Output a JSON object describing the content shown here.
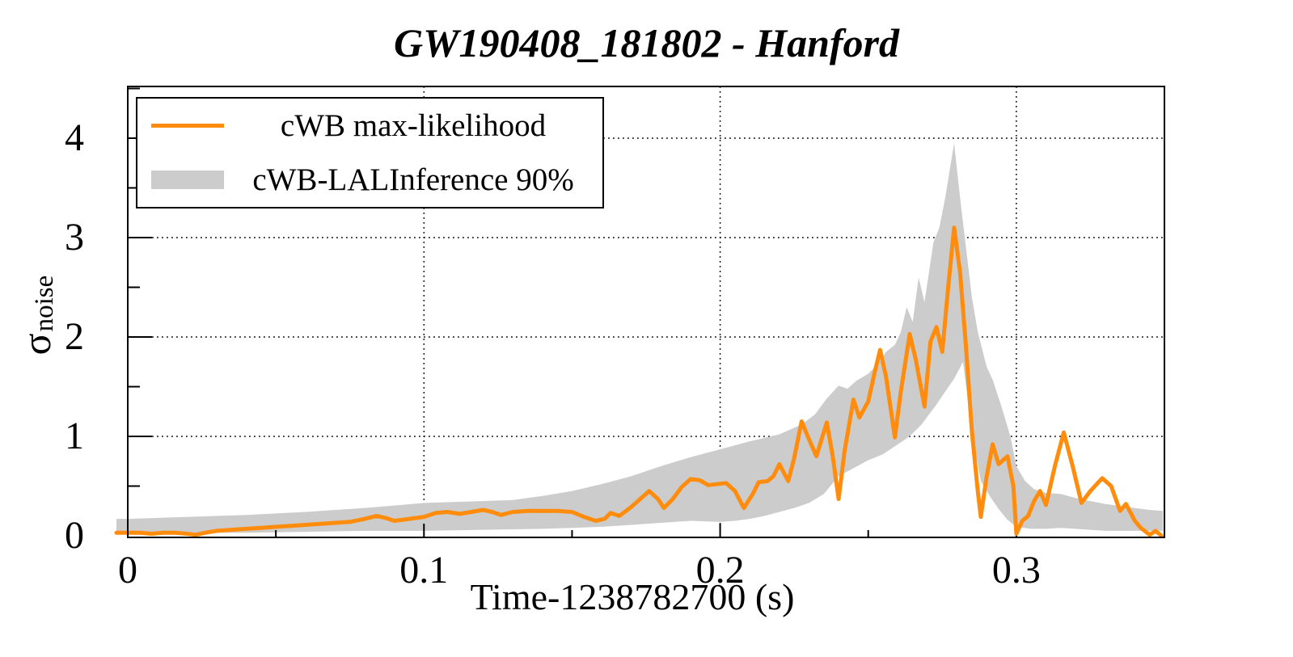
{
  "title": "GW190408_181802 - Hanford",
  "x_axis": {
    "label": "Time-1238782700 (s)",
    "tick_labels": [
      "0",
      "0.1",
      "0.2",
      "0.3"
    ],
    "tick_values": [
      0,
      0.1,
      0.2,
      0.3
    ],
    "minor_step": 0.05,
    "range": [
      0,
      0.35
    ]
  },
  "y_axis": {
    "label_base": "σ",
    "label_sub": "noise",
    "tick_labels": [
      "0",
      "1",
      "2",
      "3",
      "4"
    ],
    "tick_values": [
      0,
      1,
      2,
      3,
      4
    ],
    "minor_step": 0.5,
    "range": [
      0,
      4.52
    ]
  },
  "legend": {
    "entries": [
      {
        "label": "cWB max-likelihood",
        "type": "line",
        "color": "#ff8c0d"
      },
      {
        "label": "cWB-LALInference 90%",
        "type": "band",
        "color": "#cccccc"
      }
    ],
    "position": "top-left"
  },
  "colors": {
    "line": "#ff8c0d",
    "band": "#cccccc",
    "frame": "#000000",
    "grid": "#000000",
    "background": "#ffffff"
  },
  "chart_data": {
    "type": "line",
    "title": "GW190408_181802 - Hanford",
    "xlabel": "Time-1238782700 (s)",
    "ylabel": "sigma_noise",
    "xlim": [
      0,
      0.35
    ],
    "ylim": [
      0,
      4.52
    ],
    "grid": true,
    "grid_style": "dotted",
    "x_gridlines": [
      0.1,
      0.2,
      0.3
    ],
    "y_gridlines": [
      1,
      2,
      3,
      4
    ],
    "legend_position": "top-left",
    "series": [
      {
        "name": "cWB max-likelihood",
        "type": "line",
        "color": "#ff8c0d",
        "points": [
          [
            0,
            0.03
          ],
          [
            0.004,
            0.03
          ],
          [
            0.008,
            0.02
          ],
          [
            0.012,
            0.03
          ],
          [
            0.016,
            0.03
          ],
          [
            0.02,
            0.02
          ],
          [
            0.023,
            0.01
          ],
          [
            0.026,
            0.03
          ],
          [
            0.03,
            0.05
          ],
          [
            0.035,
            0.06
          ],
          [
            0.04,
            0.07
          ],
          [
            0.045,
            0.08
          ],
          [
            0.05,
            0.09
          ],
          [
            0.055,
            0.1
          ],
          [
            0.06,
            0.11
          ],
          [
            0.065,
            0.12
          ],
          [
            0.07,
            0.13
          ],
          [
            0.075,
            0.14
          ],
          [
            0.08,
            0.17
          ],
          [
            0.084,
            0.2
          ],
          [
            0.087,
            0.18
          ],
          [
            0.09,
            0.15
          ],
          [
            0.095,
            0.17
          ],
          [
            0.1,
            0.19
          ],
          [
            0.104,
            0.23
          ],
          [
            0.108,
            0.24
          ],
          [
            0.112,
            0.22
          ],
          [
            0.116,
            0.24
          ],
          [
            0.12,
            0.26
          ],
          [
            0.123,
            0.24
          ],
          [
            0.126,
            0.21
          ],
          [
            0.13,
            0.24
          ],
          [
            0.135,
            0.25
          ],
          [
            0.14,
            0.25
          ],
          [
            0.145,
            0.25
          ],
          [
            0.15,
            0.24
          ],
          [
            0.154,
            0.19
          ],
          [
            0.158,
            0.15
          ],
          [
            0.161,
            0.17
          ],
          [
            0.163,
            0.23
          ],
          [
            0.166,
            0.2
          ],
          [
            0.17,
            0.29
          ],
          [
            0.173,
            0.37
          ],
          [
            0.176,
            0.45
          ],
          [
            0.179,
            0.37
          ],
          [
            0.181,
            0.28
          ],
          [
            0.184,
            0.37
          ],
          [
            0.187,
            0.49
          ],
          [
            0.19,
            0.57
          ],
          [
            0.193,
            0.56
          ],
          [
            0.196,
            0.51
          ],
          [
            0.199,
            0.52
          ],
          [
            0.202,
            0.53
          ],
          [
            0.205,
            0.45
          ],
          [
            0.208,
            0.28
          ],
          [
            0.211,
            0.42
          ],
          [
            0.213,
            0.54
          ],
          [
            0.216,
            0.55
          ],
          [
            0.218,
            0.6
          ],
          [
            0.22,
            0.72
          ],
          [
            0.223,
            0.55
          ],
          [
            0.225,
            0.78
          ],
          [
            0.2275,
            1.15
          ],
          [
            0.23,
            0.97
          ],
          [
            0.2325,
            0.8
          ],
          [
            0.236,
            1.14
          ],
          [
            0.238,
            0.8
          ],
          [
            0.24,
            0.37
          ],
          [
            0.242,
            0.85
          ],
          [
            0.245,
            1.37
          ],
          [
            0.247,
            1.19
          ],
          [
            0.25,
            1.35
          ],
          [
            0.252,
            1.62
          ],
          [
            0.254,
            1.87
          ],
          [
            0.256,
            1.6
          ],
          [
            0.259,
            0.99
          ],
          [
            0.261,
            1.45
          ],
          [
            0.264,
            2.03
          ],
          [
            0.266,
            1.78
          ],
          [
            0.269,
            1.3
          ],
          [
            0.271,
            1.95
          ],
          [
            0.273,
            2.1
          ],
          [
            0.275,
            1.85
          ],
          [
            0.277,
            2.5
          ],
          [
            0.279,
            3.1
          ],
          [
            0.281,
            2.65
          ],
          [
            0.283,
            1.9
          ],
          [
            0.285,
            1.05
          ],
          [
            0.287,
            0.45
          ],
          [
            0.288,
            0.19
          ],
          [
            0.29,
            0.6
          ],
          [
            0.292,
            0.92
          ],
          [
            0.294,
            0.72
          ],
          [
            0.297,
            0.8
          ],
          [
            0.299,
            0.5
          ],
          [
            0.3,
            0.02
          ],
          [
            0.302,
            0.15
          ],
          [
            0.304,
            0.2
          ],
          [
            0.306,
            0.35
          ],
          [
            0.308,
            0.45
          ],
          [
            0.31,
            0.31
          ],
          [
            0.313,
            0.7
          ],
          [
            0.316,
            1.04
          ],
          [
            0.319,
            0.7
          ],
          [
            0.322,
            0.33
          ],
          [
            0.325,
            0.45
          ],
          [
            0.329,
            0.58
          ],
          [
            0.332,
            0.5
          ],
          [
            0.335,
            0.25
          ],
          [
            0.337,
            0.32
          ],
          [
            0.34,
            0.15
          ],
          [
            0.342,
            0.08
          ],
          [
            0.345,
            0.01
          ],
          [
            0.347,
            0.05
          ],
          [
            0.349,
            0.0
          ]
        ]
      },
      {
        "name": "cWB-LALInference 90%",
        "type": "band",
        "color": "#cccccc",
        "lower": [
          [
            0,
            0.02
          ],
          [
            0.02,
            0.03
          ],
          [
            0.04,
            0.03
          ],
          [
            0.06,
            0.04
          ],
          [
            0.08,
            0.05
          ],
          [
            0.1,
            0.05
          ],
          [
            0.12,
            0.06
          ],
          [
            0.14,
            0.07
          ],
          [
            0.15,
            0.08
          ],
          [
            0.16,
            0.09
          ],
          [
            0.17,
            0.11
          ],
          [
            0.18,
            0.13
          ],
          [
            0.19,
            0.15
          ],
          [
            0.2,
            0.14
          ],
          [
            0.205,
            0.15
          ],
          [
            0.21,
            0.17
          ],
          [
            0.215,
            0.2
          ],
          [
            0.22,
            0.24
          ],
          [
            0.225,
            0.28
          ],
          [
            0.23,
            0.33
          ],
          [
            0.235,
            0.42
          ],
          [
            0.24,
            0.6
          ],
          [
            0.245,
            0.68
          ],
          [
            0.25,
            0.76
          ],
          [
            0.255,
            0.82
          ],
          [
            0.26,
            0.92
          ],
          [
            0.263,
            0.98
          ],
          [
            0.265,
            1.03
          ],
          [
            0.268,
            1.12
          ],
          [
            0.27,
            1.2
          ],
          [
            0.273,
            1.32
          ],
          [
            0.276,
            1.45
          ],
          [
            0.279,
            1.58
          ],
          [
            0.282,
            1.75
          ],
          [
            0.284,
            1.28
          ],
          [
            0.286,
            0.88
          ],
          [
            0.288,
            0.55
          ],
          [
            0.291,
            0.4
          ],
          [
            0.294,
            0.27
          ],
          [
            0.297,
            0.16
          ],
          [
            0.3,
            0.09
          ],
          [
            0.305,
            0.07
          ],
          [
            0.31,
            0.07
          ],
          [
            0.315,
            0.08
          ],
          [
            0.32,
            0.07
          ],
          [
            0.325,
            0.06
          ],
          [
            0.33,
            0.05
          ],
          [
            0.335,
            0.05
          ],
          [
            0.34,
            0.05
          ],
          [
            0.345,
            0.05
          ],
          [
            0.3495,
            0.05
          ]
        ],
        "upper": [
          [
            0,
            0.17
          ],
          [
            0.02,
            0.19
          ],
          [
            0.04,
            0.21
          ],
          [
            0.06,
            0.24
          ],
          [
            0.08,
            0.28
          ],
          [
            0.1,
            0.33
          ],
          [
            0.12,
            0.35
          ],
          [
            0.13,
            0.36
          ],
          [
            0.14,
            0.4
          ],
          [
            0.15,
            0.45
          ],
          [
            0.16,
            0.52
          ],
          [
            0.17,
            0.6
          ],
          [
            0.18,
            0.7
          ],
          [
            0.19,
            0.79
          ],
          [
            0.2,
            0.87
          ],
          [
            0.21,
            0.95
          ],
          [
            0.22,
            1.02
          ],
          [
            0.2275,
            1.12
          ],
          [
            0.232,
            1.22
          ],
          [
            0.236,
            1.38
          ],
          [
            0.24,
            1.51
          ],
          [
            0.243,
            1.48
          ],
          [
            0.246,
            1.56
          ],
          [
            0.25,
            1.63
          ],
          [
            0.253,
            1.72
          ],
          [
            0.256,
            1.85
          ],
          [
            0.259,
            1.92
          ],
          [
            0.261,
            2.05
          ],
          [
            0.263,
            2.3
          ],
          [
            0.265,
            2.15
          ],
          [
            0.267,
            2.6
          ],
          [
            0.269,
            2.35
          ],
          [
            0.272,
            2.95
          ],
          [
            0.274,
            3.1
          ],
          [
            0.276,
            3.4
          ],
          [
            0.279,
            3.95
          ],
          [
            0.281,
            3.4
          ],
          [
            0.283,
            2.9
          ],
          [
            0.285,
            2.4
          ],
          [
            0.287,
            2.05
          ],
          [
            0.29,
            1.7
          ],
          [
            0.292,
            1.57
          ],
          [
            0.295,
            1.3
          ],
          [
            0.298,
            1.0
          ],
          [
            0.3,
            0.7
          ],
          [
            0.303,
            0.55
          ],
          [
            0.306,
            0.47
          ],
          [
            0.31,
            0.43
          ],
          [
            0.315,
            0.42
          ],
          [
            0.32,
            0.38
          ],
          [
            0.325,
            0.35
          ],
          [
            0.33,
            0.32
          ],
          [
            0.335,
            0.3
          ],
          [
            0.34,
            0.28
          ],
          [
            0.345,
            0.26
          ],
          [
            0.3495,
            0.25
          ]
        ]
      }
    ]
  }
}
